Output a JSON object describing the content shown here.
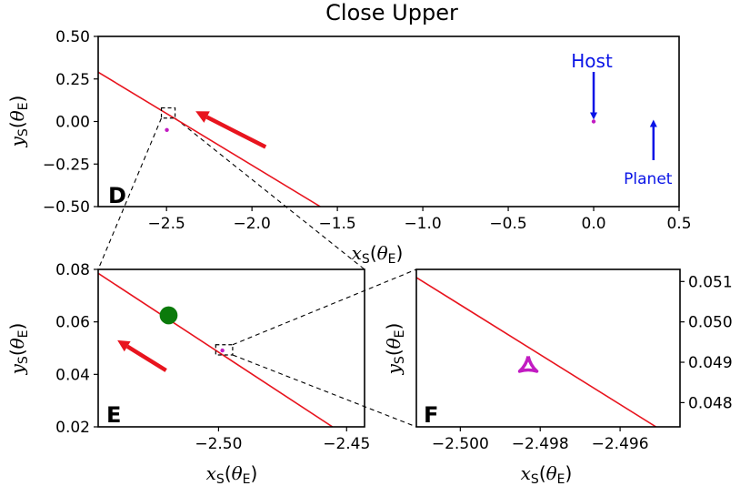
{
  "figure_title": "Close Upper",
  "colors": {
    "trajectory": "#e8141e",
    "arrow": "#e8141e",
    "lens": "#0a14e6",
    "caustic": "#c21bc2",
    "source": "#0b7a0b",
    "axes": "#000000"
  },
  "chart_data": [
    {
      "type": "line",
      "panel_label": "D",
      "xlabel": "xS(θE)",
      "ylabel": "yS(θE)",
      "xlim": [
        -2.9,
        0.5
      ],
      "ylim": [
        -0.5,
        0.5
      ],
      "x_ticks": [
        -2.5,
        -2.0,
        -1.5,
        -1.0,
        -0.5,
        0.0,
        0.5
      ],
      "x_tick_labels": [
        "−2.5",
        "−2.0",
        "−1.5",
        "−1.0",
        "−0.5",
        "0.0",
        "0.5"
      ],
      "y_ticks": [
        0.5,
        0.25,
        0.0,
        -0.25,
        -0.5
      ],
      "y_tick_labels": [
        "0.50",
        "0.25",
        "0.00",
        "−0.25",
        "−0.50"
      ],
      "trajectory": {
        "x": [
          -2.9,
          -1.6
        ],
        "y": [
          0.29,
          -0.5
        ]
      },
      "motion_arrow": {
        "from": [
          -1.92,
          -0.15
        ],
        "to": [
          -2.33,
          0.06
        ]
      },
      "annotations": [
        {
          "text": "Host",
          "x": 0.0,
          "y": 0.27,
          "arrow_to": [
            0.0,
            0.0
          ]
        },
        {
          "text": "Planet",
          "x": 0.35,
          "y": -0.27,
          "arrow_to": [
            0.35,
            0.0
          ]
        }
      ],
      "points": [
        {
          "x": 0.0,
          "y": 0.0
        },
        {
          "x": -2.498,
          "y": -0.05
        }
      ],
      "zoom_box": {
        "x": [
          -2.53,
          -2.45
        ],
        "y": [
          0.02,
          0.08
        ]
      }
    },
    {
      "type": "line",
      "panel_label": "E",
      "xlabel": "xS(θE)",
      "ylabel": "yS(θE)",
      "xlim": [
        -2.547,
        -2.443
      ],
      "ylim": [
        0.02,
        0.08
      ],
      "x_ticks": [
        -2.5,
        -2.45
      ],
      "x_tick_labels": [
        "−2.50",
        "−2.45"
      ],
      "y_ticks": [
        0.08,
        0.06,
        0.04,
        0.02
      ],
      "y_tick_labels": [
        "0.08",
        "0.06",
        "0.04",
        "0.02"
      ],
      "trajectory": {
        "x": [
          -2.547,
          -2.4555
        ],
        "y": [
          0.0785,
          0.02
        ]
      },
      "motion_arrow": {
        "from": [
          -2.5205,
          0.0415
        ],
        "to": [
          -2.5395,
          0.053
        ]
      },
      "source_disk": {
        "x": -2.5195,
        "y": 0.0625,
        "radius": 0.0035
      },
      "points": [
        {
          "x": -2.4985,
          "y": 0.0491
        }
      ],
      "zoom_box": {
        "x": [
          -2.5011,
          -2.4945
        ],
        "y": [
          0.0474,
          0.0513
        ]
      }
    },
    {
      "type": "line",
      "panel_label": "F",
      "xlabel": "xS(θE)",
      "ylabel": "yS(θE)",
      "xlim": [
        -2.5011,
        -2.4945
      ],
      "ylim": [
        0.0474,
        0.0513
      ],
      "x_ticks": [
        -2.5,
        -2.498,
        -2.496
      ],
      "x_tick_labels": [
        "−2.500",
        "−2.498",
        "−2.496"
      ],
      "y_ticks": [
        0.051,
        0.05,
        0.049,
        0.048
      ],
      "y_tick_labels": [
        "0.051",
        "0.050",
        "0.049",
        "0.048"
      ],
      "trajectory": {
        "x": [
          -2.5011,
          -2.4951
        ],
        "y": [
          0.0511,
          0.0474
        ]
      },
      "caustic_center": {
        "x": -2.4983,
        "y": 0.0489
      }
    }
  ]
}
